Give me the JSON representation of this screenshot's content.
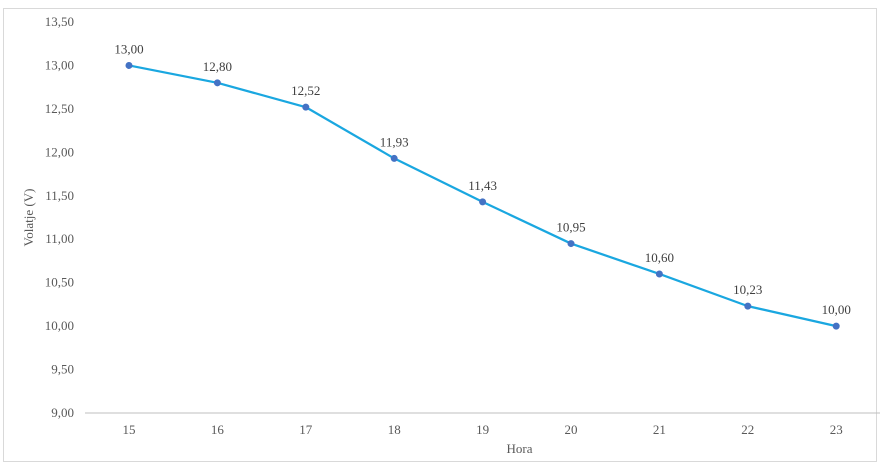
{
  "chart_data": {
    "type": "line",
    "title": "",
    "xlabel": "Hora",
    "ylabel": "Volatje (V)",
    "categories": [
      "15",
      "16",
      "17",
      "18",
      "19",
      "20",
      "21",
      "22",
      "23"
    ],
    "series": [
      {
        "values": [
          13.0,
          12.8,
          12.52,
          11.93,
          11.43,
          10.95,
          10.6,
          10.23,
          10.0
        ],
        "value_labels": [
          "13,00",
          "12,80",
          "12,52",
          "11,93",
          "11,43",
          "10,95",
          "10,60",
          "10,23",
          "10,00"
        ],
        "color": "#1aa7e0",
        "marker_color": "#4472c4"
      }
    ],
    "ylim": [
      9.0,
      13.5
    ],
    "yticks": [
      9.0,
      9.5,
      10.0,
      10.5,
      11.0,
      11.5,
      12.0,
      12.5,
      13.0,
      13.5
    ],
    "ytick_labels": [
      "9,00",
      "9,50",
      "10,00",
      "10,50",
      "11,00",
      "11,50",
      "12,00",
      "12,50",
      "13,00",
      "13,50"
    ],
    "grid": false,
    "legend": "none",
    "axis_color": "#bfbfbf"
  }
}
